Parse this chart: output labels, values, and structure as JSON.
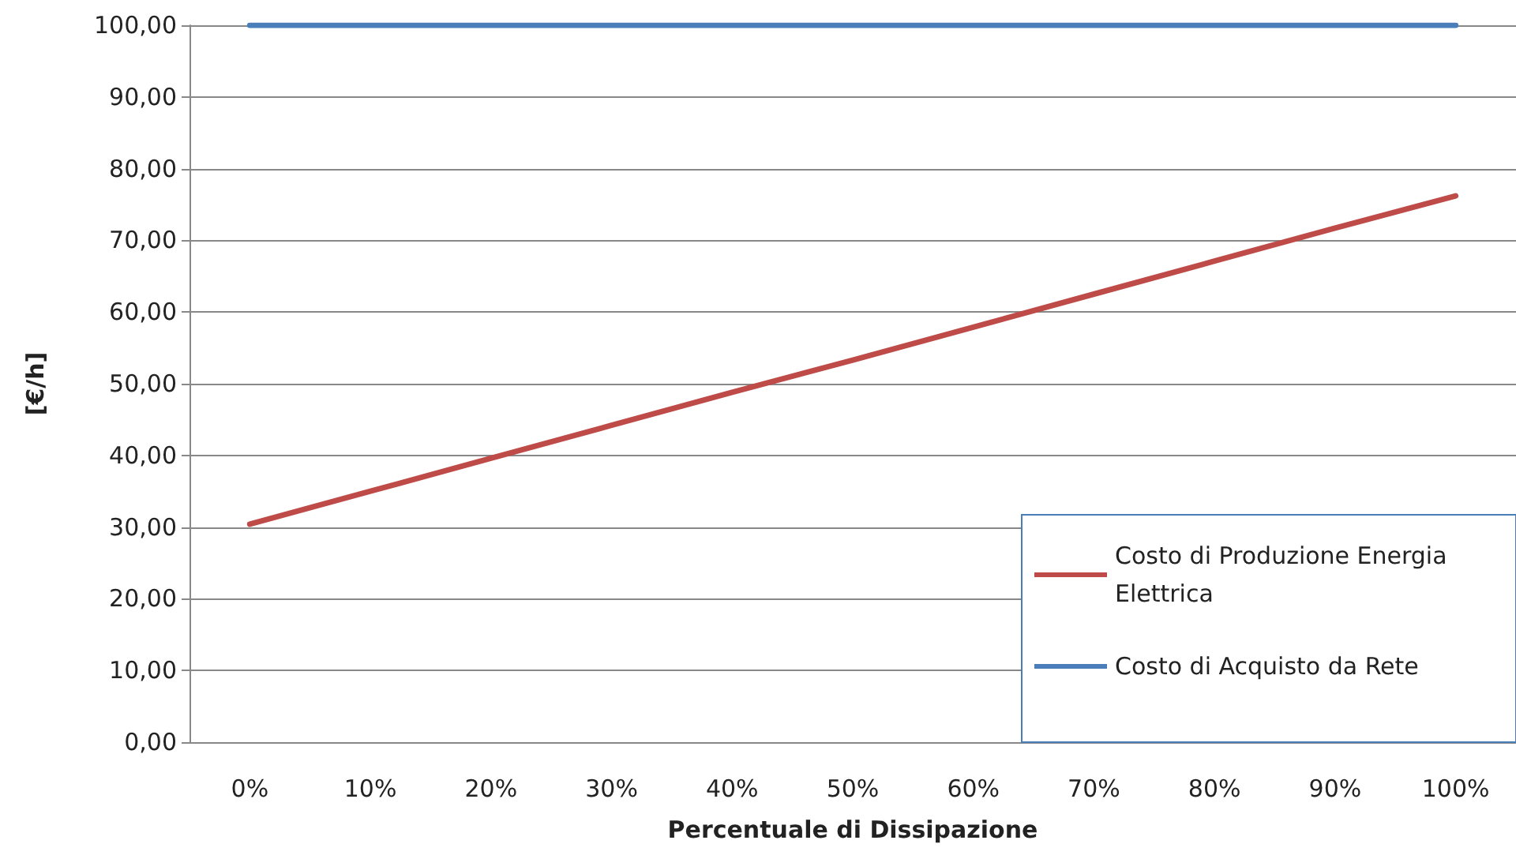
{
  "chart_data": {
    "type": "line",
    "xlabel": "Percentuale di Dissipazione",
    "ylabel": "[€/h]",
    "categories": [
      "0%",
      "10%",
      "20%",
      "30%",
      "40%",
      "50%",
      "60%",
      "70%",
      "80%",
      "90%",
      "100%"
    ],
    "series": [
      {
        "name": "Costo di Produzione Energia Elettrica",
        "color": "#be4b48",
        "values": [
          30.4,
          35.0,
          39.6,
          44.2,
          48.8,
          53.3,
          57.9,
          62.5,
          67.1,
          71.7,
          76.2
        ]
      },
      {
        "name": "Costo di Acquisto da Rete",
        "color": "#4a7ebb",
        "values": [
          100,
          100,
          100,
          100,
          100,
          100,
          100,
          100,
          100,
          100,
          100
        ]
      }
    ],
    "ylim": [
      0,
      100
    ],
    "yticks": [
      {
        "value": 0,
        "label": "0,00"
      },
      {
        "value": 10,
        "label": "10,00"
      },
      {
        "value": 20,
        "label": "20,00"
      },
      {
        "value": 30,
        "label": "30,00"
      },
      {
        "value": 40,
        "label": "40,00"
      },
      {
        "value": 50,
        "label": "50,00"
      },
      {
        "value": 60,
        "label": "60,00"
      },
      {
        "value": 70,
        "label": "70,00"
      },
      {
        "value": 80,
        "label": "80,00"
      },
      {
        "value": 90,
        "label": "90,00"
      },
      {
        "value": 100,
        "label": "100,00"
      }
    ],
    "grid": "y",
    "legend": "bottom right",
    "marker": "none",
    "line_style": "solid"
  }
}
